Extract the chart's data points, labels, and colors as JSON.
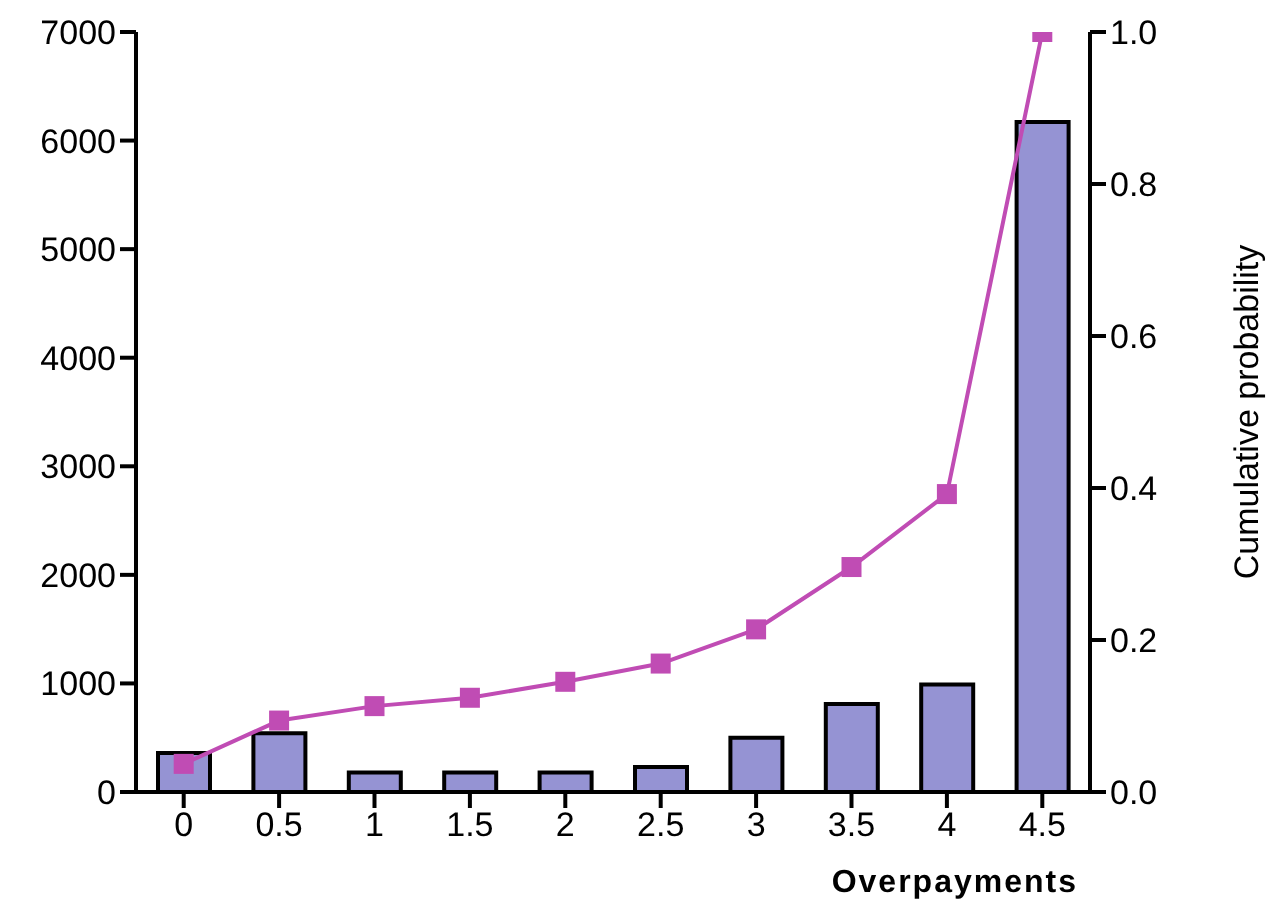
{
  "chart_data": {
    "type": "bar",
    "xlabel": "Overpayments",
    "y2label": "Cumulative probability",
    "categories": [
      "0",
      "0.5",
      "1",
      "1.5",
      "2",
      "2.5",
      "3",
      "3.5",
      "4",
      "4.5"
    ],
    "series": [
      {
        "color": "#9593d3",
        "values": [
          360,
          540,
          180,
          180,
          180,
          230,
          500,
          810,
          990,
          6170
        ]
      },
      {
        "type": "line",
        "axis": "y2",
        "color": "#c04cb4",
        "marker": "square",
        "values": [
          0.037,
          0.094,
          0.113,
          0.124,
          0.145,
          0.169,
          0.214,
          0.296,
          0.392,
          1.0
        ]
      }
    ],
    "ylim": [
      0,
      7000
    ],
    "yticks": [
      0,
      1000,
      2000,
      3000,
      4000,
      5000,
      6000,
      7000
    ],
    "y2lim": [
      0,
      1.0
    ],
    "y2ticks": [
      {
        "value": 0,
        "label": "0.0"
      },
      0.2,
      0.4,
      0.6,
      0.8,
      {
        "value": 1,
        "label": "1.0"
      }
    ],
    "grid": false,
    "legend": false
  }
}
